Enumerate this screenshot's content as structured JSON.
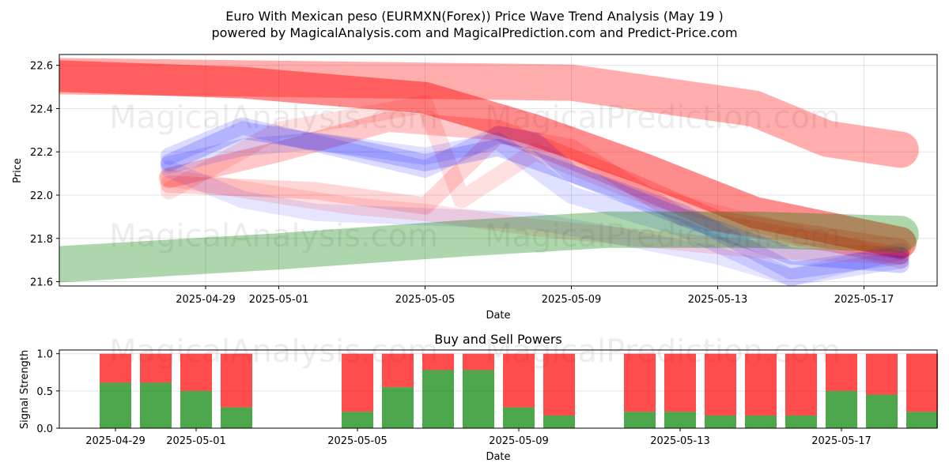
{
  "title_line1": "Euro With Mexican peso (EURMXN(Forex)) Price Wave Trend Analysis (May 19 )",
  "title_line2": "powered by MagicalAnalysis.com and MagicalPrediction.com and Predict-Price.com",
  "watermarks": [
    "MagicalAnalysis.com",
    "MagicalPrediction.com"
  ],
  "chart_data": [
    {
      "type": "line",
      "title": "",
      "xlabel": "Date",
      "ylabel": "Price",
      "ylim": [
        21.58,
        22.65
      ],
      "x_range": [
        "2025-04-25",
        "2025-05-19"
      ],
      "grid": true,
      "yticks": [
        21.6,
        21.8,
        22.0,
        22.2,
        22.4,
        22.6
      ],
      "ytick_labels": [
        "21.6",
        "21.8",
        "22.0",
        "22.2",
        "22.4",
        "22.6"
      ],
      "xticks": [
        "2025-04-29",
        "2025-05-01",
        "2025-05-05",
        "2025-05-09",
        "2025-05-13",
        "2025-05-17"
      ],
      "series": [
        {
          "name": "red-forecast-1",
          "color": "#ff0000",
          "opacity": 0.32,
          "width": 46,
          "x": [
            "2025-04-25",
            "2025-05-09",
            "2025-05-14",
            "2025-05-16",
            "2025-05-18"
          ],
          "y": [
            22.55,
            22.52,
            22.4,
            22.26,
            22.21
          ]
        },
        {
          "name": "red-forecast-2",
          "color": "#ff0000",
          "opacity": 0.45,
          "width": 40,
          "x": [
            "2025-04-25",
            "2025-04-30",
            "2025-05-05",
            "2025-05-08",
            "2025-05-11",
            "2025-05-14",
            "2025-05-18"
          ],
          "y": [
            22.55,
            22.52,
            22.45,
            22.3,
            22.12,
            21.92,
            21.78
          ]
        },
        {
          "name": "red-forecast-3",
          "color": "#ff0000",
          "opacity": 0.22,
          "width": 26,
          "x": [
            "2025-04-28",
            "2025-05-01",
            "2025-05-04",
            "2025-05-07",
            "2025-05-10",
            "2025-05-13",
            "2025-05-18"
          ],
          "y": [
            22.08,
            22.2,
            22.34,
            22.3,
            22.1,
            21.88,
            21.75
          ]
        },
        {
          "name": "red-forecast-4",
          "color": "#ff0000",
          "opacity": 0.16,
          "width": 22,
          "x": [
            "2025-04-28",
            "2025-05-02",
            "2025-05-05",
            "2025-05-07",
            "2025-05-09",
            "2025-05-12",
            "2025-05-18"
          ],
          "y": [
            22.05,
            22.02,
            21.95,
            22.28,
            22.22,
            21.9,
            21.72
          ]
        },
        {
          "name": "red-forecast-5",
          "color": "#ff0000",
          "opacity": 0.12,
          "width": 22,
          "x": [
            "2025-04-28",
            "2025-05-01",
            "2025-05-05",
            "2025-05-06",
            "2025-05-08",
            "2025-05-11",
            "2025-05-18"
          ],
          "y": [
            22.02,
            22.3,
            22.42,
            21.98,
            22.2,
            22.0,
            21.7
          ]
        },
        {
          "name": "blue-wave-1",
          "color": "#0000ff",
          "opacity": 0.18,
          "width": 22,
          "x": [
            "2025-04-28",
            "2025-04-30",
            "2025-05-03",
            "2025-05-05",
            "2025-05-07",
            "2025-05-09",
            "2025-05-12",
            "2025-05-15",
            "2025-05-18"
          ],
          "y": [
            22.15,
            22.3,
            22.22,
            22.15,
            22.22,
            22.1,
            21.9,
            21.72,
            21.68
          ]
        },
        {
          "name": "blue-wave-2",
          "color": "#0000ff",
          "opacity": 0.14,
          "width": 22,
          "x": [
            "2025-04-28",
            "2025-04-30",
            "2025-05-03",
            "2025-05-05",
            "2025-05-07",
            "2025-05-08",
            "2025-05-09",
            "2025-05-12",
            "2025-05-15",
            "2025-05-18"
          ],
          "y": [
            22.18,
            22.32,
            22.2,
            22.12,
            22.28,
            22.25,
            22.1,
            21.92,
            21.65,
            21.72
          ]
        },
        {
          "name": "blue-wave-3",
          "color": "#0000ff",
          "opacity": 0.12,
          "width": 22,
          "x": [
            "2025-04-28",
            "2025-04-30",
            "2025-05-02",
            "2025-05-05",
            "2025-05-07",
            "2025-05-09",
            "2025-05-12",
            "2025-05-15",
            "2025-05-18"
          ],
          "y": [
            22.14,
            22.22,
            22.25,
            22.18,
            22.25,
            22.0,
            21.85,
            21.62,
            21.7
          ]
        },
        {
          "name": "blue-wave-4",
          "color": "#0000ff",
          "opacity": 0.1,
          "width": 22,
          "x": [
            "2025-04-28",
            "2025-04-30",
            "2025-05-02",
            "2025-05-05",
            "2025-05-08",
            "2025-05-10",
            "2025-05-13",
            "2025-05-15",
            "2025-05-18"
          ],
          "y": [
            22.12,
            21.98,
            21.92,
            21.9,
            21.88,
            21.82,
            21.72,
            21.62,
            21.74
          ]
        },
        {
          "name": "pink-wave-1",
          "color": "#ff0000",
          "opacity": 0.12,
          "width": 22,
          "x": [
            "2025-04-28",
            "2025-05-01",
            "2025-05-03",
            "2025-05-05",
            "2025-05-08",
            "2025-05-11",
            "2025-05-14",
            "2025-05-18"
          ],
          "y": [
            22.08,
            22.0,
            21.95,
            21.92,
            21.85,
            21.8,
            21.75,
            21.72
          ]
        },
        {
          "name": "green-trend",
          "color": "#008000",
          "opacity": 0.32,
          "width": 46,
          "x": [
            "2025-04-25",
            "2025-05-01",
            "2025-05-06",
            "2025-05-10",
            "2025-05-14",
            "2025-05-18"
          ],
          "y": [
            21.68,
            21.74,
            21.8,
            21.84,
            21.84,
            21.82
          ]
        }
      ]
    },
    {
      "type": "bar",
      "title": "Buy and Sell Powers",
      "xlabel": "Date",
      "ylabel": "Signal Strength",
      "ylim": [
        0,
        1.05
      ],
      "yticks": [
        0.0,
        0.5,
        1.0
      ],
      "ytick_labels": [
        "0.0",
        "0.5",
        "1.0"
      ],
      "xticks": [
        "2025-04-29",
        "2025-05-01",
        "2025-05-05",
        "2025-05-09",
        "2025-05-13",
        "2025-05-17"
      ],
      "categories": [
        "2025-04-29",
        "2025-04-30",
        "2025-05-01",
        "2025-05-02",
        "2025-05-05",
        "2025-05-06",
        "2025-05-07",
        "2025-05-08",
        "2025-05-09",
        "2025-05-10",
        "2025-05-12",
        "2025-05-13",
        "2025-05-14",
        "2025-05-15",
        "2025-05-16",
        "2025-05-17",
        "2025-05-18",
        "2025-05-19"
      ],
      "series": [
        {
          "name": "Buy",
          "color": "#008000",
          "values": [
            0.61,
            0.61,
            0.5,
            0.28,
            0.22,
            0.55,
            0.78,
            0.78,
            0.28,
            0.17,
            0.22,
            0.22,
            0.17,
            0.17,
            0.17,
            0.5,
            0.45,
            0.22
          ]
        },
        {
          "name": "Sell",
          "color": "#ff0000",
          "values": [
            0.39,
            0.39,
            0.5,
            0.72,
            0.78,
            0.45,
            0.22,
            0.22,
            0.72,
            0.83,
            0.78,
            0.78,
            0.83,
            0.83,
            0.83,
            0.5,
            0.55,
            0.78
          ]
        }
      ]
    }
  ]
}
